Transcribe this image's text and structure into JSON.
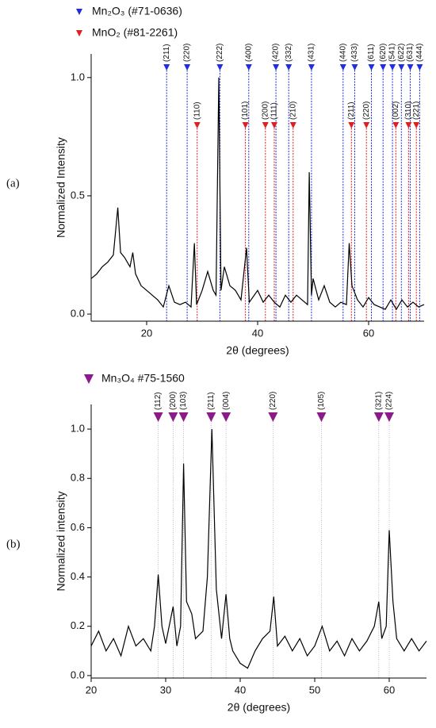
{
  "chart_data": [
    {
      "type": "line",
      "panel_label": "(a)",
      "y_label": "Normalized Intensity",
      "x_label": "2θ (degrees)",
      "xlim": [
        10,
        70
      ],
      "ylim": [
        -0.03,
        1.1
      ],
      "xticks": [
        20,
        40,
        60
      ],
      "yticks": [
        {
          "value": 0,
          "label": "0.0"
        },
        {
          "value": 0.5,
          "label": "0.5"
        },
        {
          "value": 1,
          "label": "1.0"
        }
      ],
      "series": [
        {
          "color": "#000000",
          "x": [
            10,
            11,
            12,
            13,
            14,
            14.8,
            15.3,
            16,
            17,
            17.5,
            18,
            19,
            20,
            21,
            22,
            23,
            24,
            25,
            26,
            27,
            28,
            28.6,
            29,
            30,
            31,
            32,
            32.5,
            33,
            33.4,
            34,
            35,
            36,
            37,
            38,
            38.5,
            40,
            41,
            42,
            43,
            44,
            45,
            46,
            47,
            48,
            49,
            49.3,
            49.7,
            50,
            51,
            52,
            53,
            54,
            55,
            56,
            56.5,
            57,
            58,
            59,
            60,
            61,
            62,
            63,
            64,
            65,
            66,
            67,
            68,
            69,
            70
          ],
          "values": [
            0.15,
            0.17,
            0.2,
            0.22,
            0.25,
            0.45,
            0.26,
            0.24,
            0.2,
            0.26,
            0.17,
            0.12,
            0.1,
            0.08,
            0.06,
            0.03,
            0.12,
            0.05,
            0.04,
            0.05,
            0.03,
            0.3,
            0.04,
            0.1,
            0.18,
            0.1,
            0.08,
            1.0,
            0.1,
            0.2,
            0.12,
            0.1,
            0.06,
            0.28,
            0.05,
            0.1,
            0.05,
            0.08,
            0.05,
            0.03,
            0.08,
            0.05,
            0.08,
            0.06,
            0.04,
            0.6,
            0.08,
            0.15,
            0.06,
            0.12,
            0.05,
            0.03,
            0.05,
            0.04,
            0.3,
            0.12,
            0.06,
            0.03,
            0.07,
            0.04,
            0.03,
            0.02,
            0.06,
            0.02,
            0.06,
            0.03,
            0.05,
            0.03,
            0.04
          ]
        }
      ],
      "references": [
        {
          "name": "Mn₂O₃ (#71-0636)",
          "color": "#1f2ee0",
          "x": [
            23.6,
            27.3,
            33.2,
            38.4,
            43.3,
            45.6,
            49.7,
            55.4,
            57.5,
            60.5,
            62.6,
            64.3,
            65.9,
            67.5,
            69.2
          ],
          "labels": [
            "(211)",
            "(220)",
            "(222)",
            "(400)",
            "(420)",
            "(332)",
            "(431)",
            "(440)",
            "(433)",
            "(611)",
            "(620)",
            "(541)",
            "(622)",
            "(631)",
            "(444)"
          ]
        },
        {
          "name": "MnO₂ (#81-2261)",
          "color": "#e01f1f",
          "x": [
            29.1,
            37.8,
            41.4,
            43.0,
            46.4,
            56.9,
            59.6,
            64.9,
            67.2,
            68.6
          ],
          "labels": [
            "(110)",
            "(101)",
            "(200)",
            "(111)",
            "(210)",
            "(211)",
            "(220)",
            "(002)",
            "(310)",
            "(221)"
          ]
        }
      ]
    },
    {
      "type": "line",
      "panel_label": "(b)",
      "y_label": "Normalized intensity",
      "x_label": "2θ (degrees)",
      "xlim": [
        20,
        65
      ],
      "ylim": [
        -0.01,
        1.1
      ],
      "xticks": [
        20,
        30,
        40,
        50,
        60
      ],
      "yticks": [
        {
          "value": 0,
          "label": "0.0"
        },
        {
          "value": 0.2,
          "label": "0.2"
        },
        {
          "value": 0.4,
          "label": "0.4"
        },
        {
          "value": 0.6,
          "label": "0.6"
        },
        {
          "value": 0.8,
          "label": "0.8"
        },
        {
          "value": 1,
          "label": "1.0"
        }
      ],
      "series": [
        {
          "color": "#000000",
          "x": [
            20,
            21,
            22,
            23,
            24,
            25,
            26,
            27,
            28,
            28.5,
            29,
            29.5,
            30,
            31,
            31.5,
            32,
            32.4,
            32.8,
            33.5,
            34,
            35,
            35.6,
            36.2,
            36.8,
            37.5,
            38.1,
            38.6,
            39,
            40,
            41,
            42,
            43,
            44,
            44.5,
            45,
            46,
            47,
            48,
            49,
            50,
            51,
            52,
            53,
            54,
            55,
            56,
            57,
            58,
            58.6,
            59,
            59.6,
            60,
            60.5,
            61,
            62,
            63,
            64,
            65
          ],
          "values": [
            0.12,
            0.18,
            0.1,
            0.15,
            0.08,
            0.2,
            0.12,
            0.15,
            0.1,
            0.2,
            0.41,
            0.2,
            0.13,
            0.28,
            0.12,
            0.2,
            0.86,
            0.3,
            0.25,
            0.15,
            0.18,
            0.4,
            1.0,
            0.35,
            0.15,
            0.33,
            0.15,
            0.1,
            0.05,
            0.03,
            0.1,
            0.15,
            0.18,
            0.32,
            0.12,
            0.16,
            0.1,
            0.15,
            0.08,
            0.12,
            0.2,
            0.1,
            0.14,
            0.08,
            0.15,
            0.1,
            0.14,
            0.2,
            0.3,
            0.15,
            0.2,
            0.59,
            0.3,
            0.15,
            0.1,
            0.15,
            0.1,
            0.14
          ]
        }
      ],
      "references": [
        {
          "name": "Mn₃O₄ #75-1560",
          "color": "#8b1a8b",
          "x": [
            29.0,
            31.0,
            32.4,
            36.1,
            38.1,
            44.4,
            50.9,
            58.6,
            60.0
          ],
          "labels": [
            "(112)",
            "(200)",
            "(103)",
            "(211)",
            "(004)",
            "(220)",
            "(105)",
            "(321)",
            "(224)"
          ]
        }
      ]
    }
  ]
}
